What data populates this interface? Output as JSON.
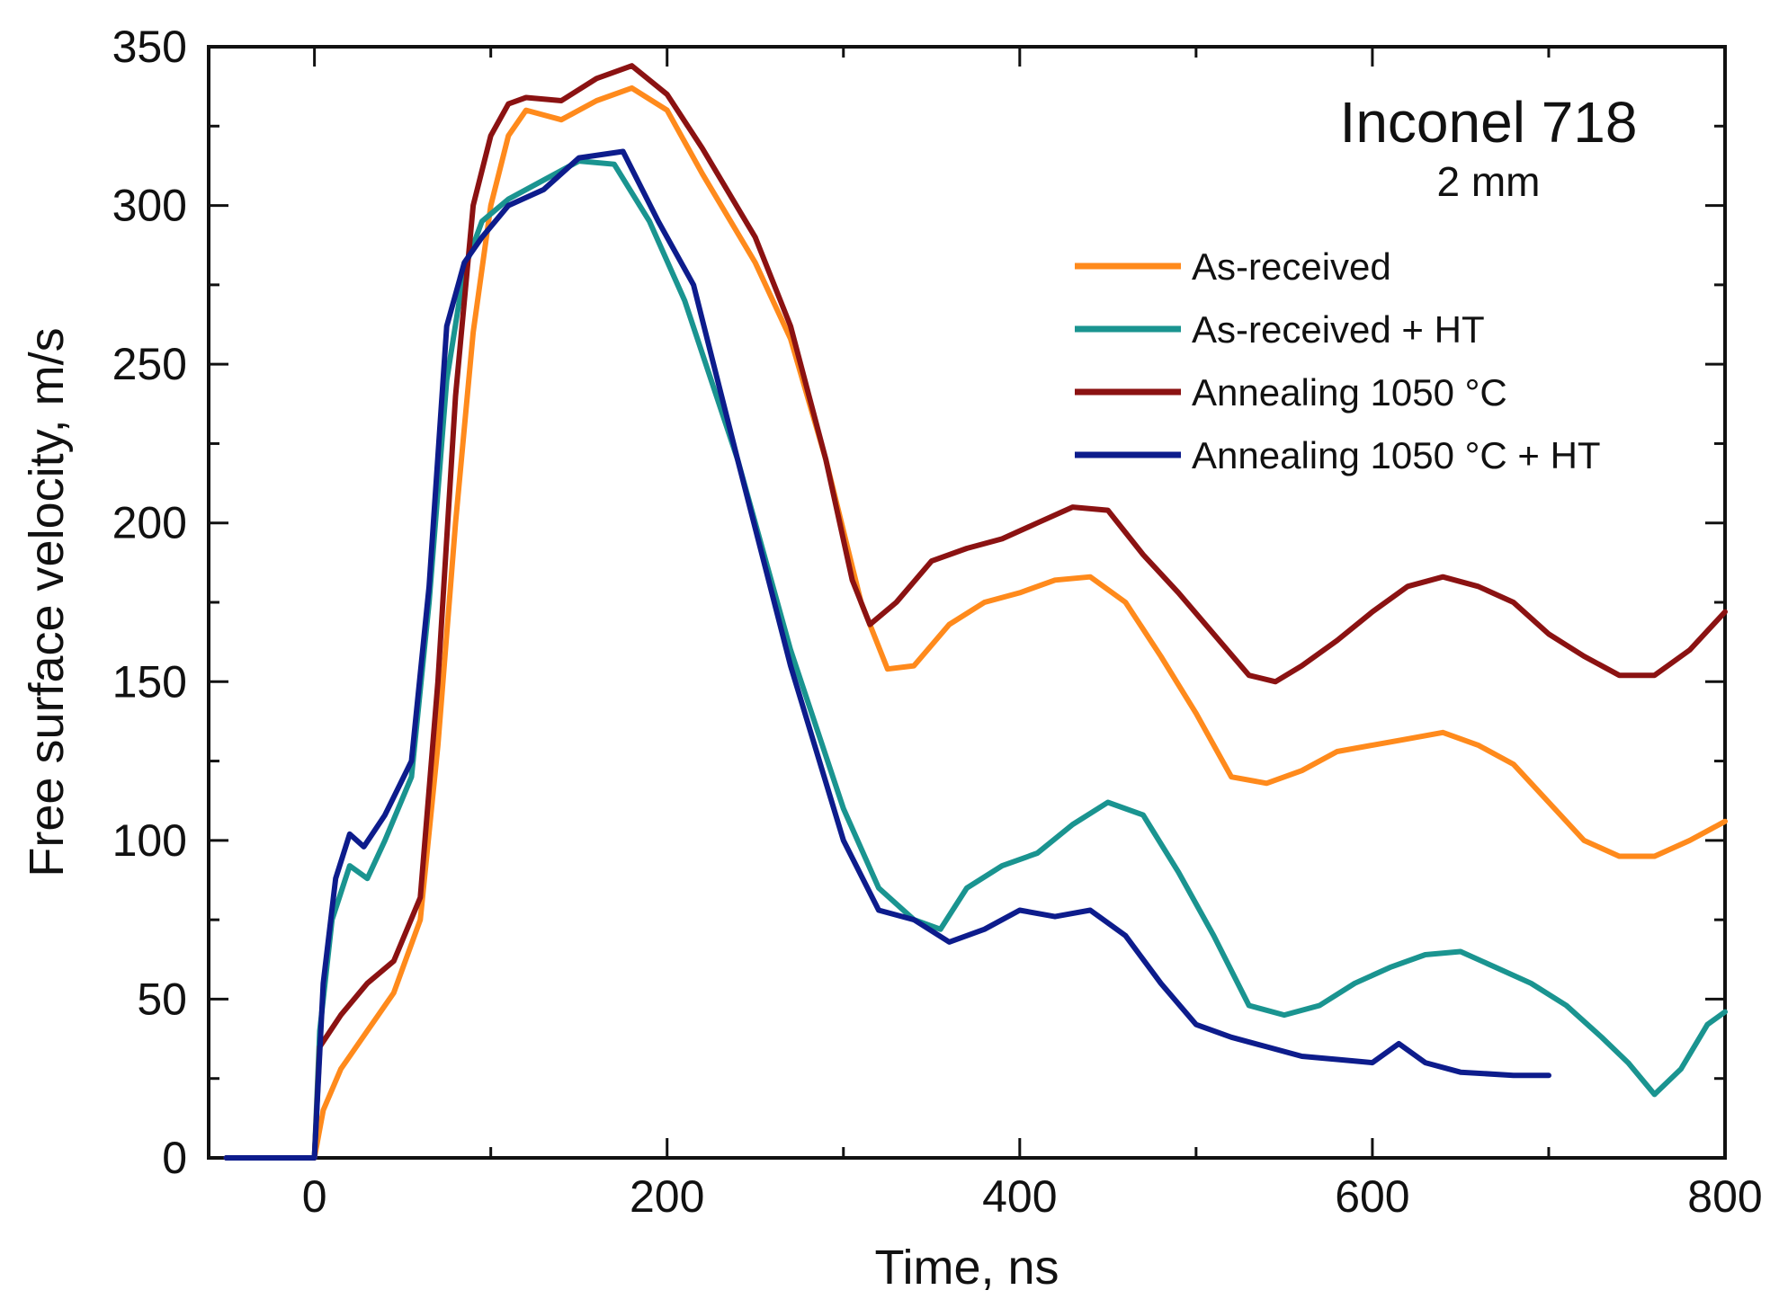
{
  "chart_data": {
    "type": "line",
    "xlabel": "Time, ns",
    "ylabel": "Free surface velocity, m/s",
    "xlim": [
      -60,
      800
    ],
    "ylim": [
      0,
      350
    ],
    "x_ticks": [
      0,
      200,
      400,
      600,
      800
    ],
    "y_ticks": [
      0,
      50,
      100,
      150,
      200,
      250,
      300,
      350
    ],
    "grid": false,
    "legend_position": "top-right",
    "annotation": {
      "title": "Inconel 718",
      "subtitle": "2 mm"
    },
    "series": [
      {
        "name": "As-received",
        "color": "#ff8a1c",
        "x": [
          -50,
          -20,
          0,
          5,
          15,
          30,
          45,
          60,
          70,
          80,
          90,
          100,
          110,
          120,
          140,
          160,
          180,
          200,
          220,
          250,
          270,
          290,
          310,
          325,
          340,
          360,
          380,
          400,
          420,
          440,
          460,
          480,
          500,
          520,
          540,
          560,
          580,
          600,
          620,
          640,
          660,
          680,
          700,
          720,
          740,
          760,
          780,
          800
        ],
        "y": [
          0,
          0,
          0,
          15,
          28,
          40,
          52,
          75,
          130,
          200,
          260,
          300,
          322,
          330,
          327,
          333,
          337,
          330,
          310,
          282,
          258,
          220,
          175,
          154,
          155,
          168,
          175,
          178,
          182,
          183,
          175,
          158,
          140,
          120,
          118,
          122,
          128,
          130,
          132,
          134,
          130,
          124,
          112,
          100,
          95,
          95,
          100,
          106
        ]
      },
      {
        "name": "As-received + HT",
        "color": "#1a9490",
        "x": [
          -50,
          -20,
          0,
          3,
          10,
          20,
          30,
          40,
          55,
          65,
          75,
          85,
          95,
          110,
          130,
          150,
          170,
          190,
          210,
          240,
          270,
          300,
          320,
          340,
          355,
          370,
          390,
          410,
          430,
          450,
          470,
          490,
          510,
          530,
          550,
          570,
          590,
          610,
          630,
          650,
          670,
          690,
          710,
          730,
          745,
          760,
          775,
          790,
          800
        ],
        "y": [
          0,
          0,
          0,
          40,
          75,
          92,
          88,
          100,
          120,
          175,
          245,
          280,
          295,
          302,
          308,
          314,
          313,
          295,
          270,
          220,
          160,
          110,
          85,
          75,
          72,
          85,
          92,
          96,
          105,
          112,
          108,
          90,
          70,
          48,
          45,
          48,
          55,
          60,
          64,
          65,
          60,
          55,
          48,
          38,
          30,
          20,
          28,
          42,
          46
        ]
      },
      {
        "name": "Annealing 1050 °C",
        "color": "#8b1212",
        "x": [
          -50,
          -20,
          0,
          3,
          15,
          30,
          45,
          60,
          70,
          80,
          90,
          100,
          110,
          120,
          140,
          160,
          180,
          200,
          220,
          250,
          270,
          290,
          305,
          315,
          330,
          350,
          370,
          390,
          410,
          430,
          450,
          470,
          490,
          510,
          530,
          545,
          560,
          580,
          600,
          620,
          640,
          660,
          680,
          700,
          720,
          740,
          760,
          780,
          800
        ],
        "y": [
          0,
          0,
          0,
          35,
          45,
          55,
          62,
          82,
          150,
          240,
          300,
          322,
          332,
          334,
          333,
          340,
          344,
          335,
          318,
          290,
          262,
          220,
          182,
          168,
          175,
          188,
          192,
          195,
          200,
          205,
          204,
          190,
          178,
          165,
          152,
          150,
          155,
          163,
          172,
          180,
          183,
          180,
          175,
          165,
          158,
          152,
          152,
          160,
          172
        ]
      },
      {
        "name": "Annealing 1050 °C + HT",
        "color": "#0d1c8c",
        "x": [
          -50,
          -20,
          0,
          5,
          12,
          20,
          28,
          40,
          55,
          65,
          75,
          85,
          95,
          110,
          130,
          150,
          175,
          195,
          215,
          240,
          270,
          300,
          320,
          340,
          360,
          380,
          400,
          420,
          440,
          460,
          480,
          500,
          520,
          540,
          560,
          580,
          600,
          615,
          630,
          650,
          680,
          700
        ],
        "y": [
          0,
          0,
          0,
          55,
          88,
          102,
          98,
          108,
          125,
          180,
          262,
          282,
          290,
          300,
          305,
          315,
          317,
          295,
          275,
          220,
          155,
          100,
          78,
          75,
          68,
          72,
          78,
          76,
          78,
          70,
          55,
          42,
          38,
          35,
          32,
          31,
          30,
          36,
          30,
          27,
          26,
          26
        ]
      }
    ]
  }
}
